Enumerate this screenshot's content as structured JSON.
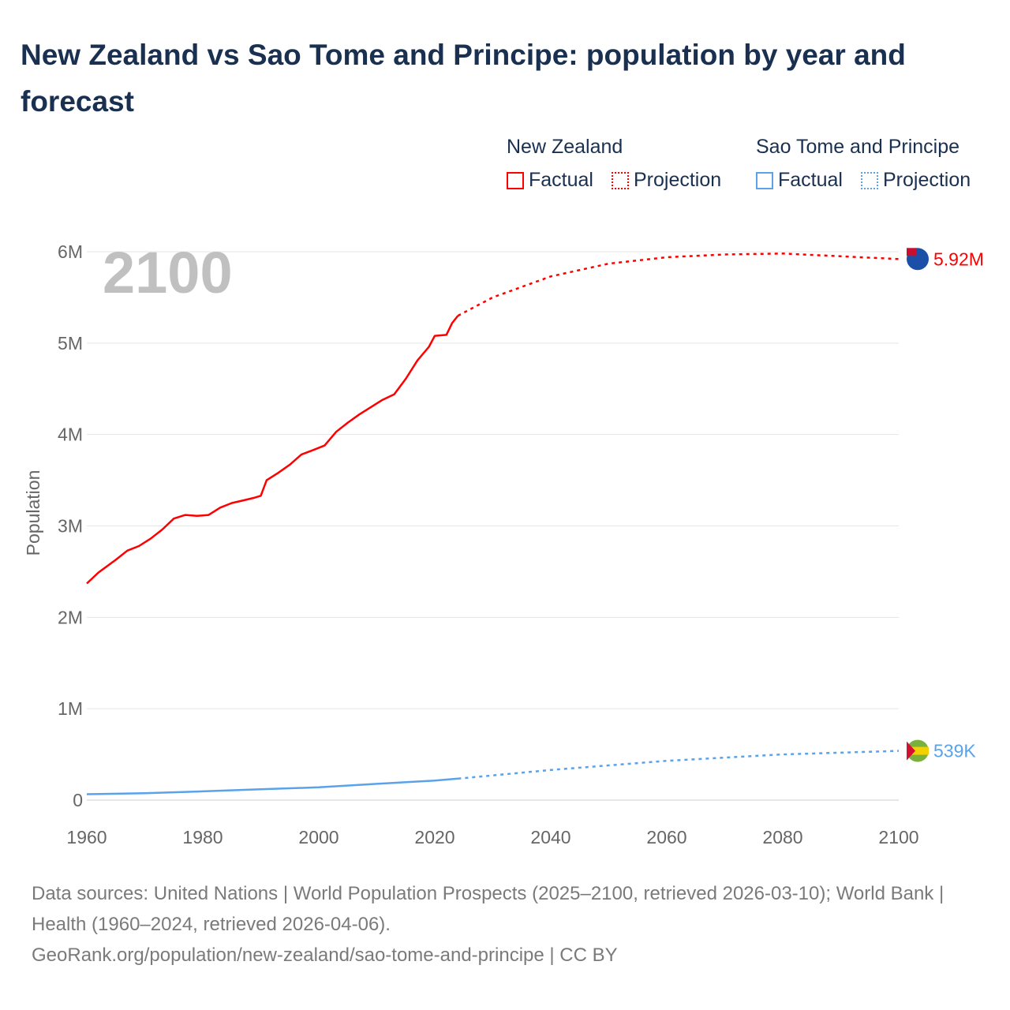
{
  "title": "New Zealand vs Sao Tome and Principe: population by year and forecast",
  "legend": {
    "groups": [
      {
        "name": "New Zealand",
        "factual_label": "Factual",
        "projection_label": "Projection",
        "color": "#ff0000"
      },
      {
        "name": "Sao Tome and Principe",
        "factual_label": "Factual",
        "projection_label": "Projection",
        "color": "#5aa2ea"
      }
    ]
  },
  "footer": {
    "sources": "Data sources: United Nations | World Population Prospects (2025–2100, retrieved 2026-03-10); World Bank | Health (1960–2024, retrieved 2026-04-06).",
    "credit": "GeoRank.org/population/new-zealand/sao-tome-and-principe | CC BY"
  },
  "chart_data": {
    "type": "line",
    "ylabel": "Population",
    "xlabel": "",
    "year_overlay": "2100",
    "xlim": [
      1960,
      2100
    ],
    "ylim": [
      0,
      6000000
    ],
    "x_ticks": [
      "1960",
      "1980",
      "2000",
      "2020",
      "2040",
      "2060",
      "2080",
      "2100"
    ],
    "y_ticks": [
      {
        "v": 0,
        "label": "0"
      },
      {
        "v": 1000000,
        "label": "1M"
      },
      {
        "v": 2000000,
        "label": "2M"
      },
      {
        "v": 3000000,
        "label": "3M"
      },
      {
        "v": 4000000,
        "label": "4M"
      },
      {
        "v": 5000000,
        "label": "5M"
      },
      {
        "v": 6000000,
        "label": "6M"
      }
    ],
    "grid": true,
    "series": [
      {
        "name": "New Zealand",
        "color": "#ff0000",
        "end_label": "5.92M",
        "factual": [
          [
            1960,
            2.37
          ],
          [
            1962,
            2.49
          ],
          [
            1965,
            2.63
          ],
          [
            1967,
            2.73
          ],
          [
            1969,
            2.78
          ],
          [
            1971,
            2.86
          ],
          [
            1973,
            2.96
          ],
          [
            1975,
            3.08
          ],
          [
            1977,
            3.12
          ],
          [
            1979,
            3.11
          ],
          [
            1981,
            3.12
          ],
          [
            1983,
            3.2
          ],
          [
            1985,
            3.25
          ],
          [
            1987,
            3.28
          ],
          [
            1989,
            3.31
          ],
          [
            1990,
            3.33
          ],
          [
            1991,
            3.5
          ],
          [
            1993,
            3.58
          ],
          [
            1995,
            3.67
          ],
          [
            1997,
            3.78
          ],
          [
            1999,
            3.83
          ],
          [
            2001,
            3.88
          ],
          [
            2003,
            4.03
          ],
          [
            2005,
            4.13
          ],
          [
            2007,
            4.22
          ],
          [
            2009,
            4.3
          ],
          [
            2011,
            4.38
          ],
          [
            2013,
            4.44
          ],
          [
            2015,
            4.61
          ],
          [
            2017,
            4.81
          ],
          [
            2019,
            4.96
          ],
          [
            2020,
            5.08
          ],
          [
            2022,
            5.09
          ],
          [
            2023,
            5.22
          ],
          [
            2024,
            5.3
          ]
        ],
        "projection": [
          [
            2024,
            5.3
          ],
          [
            2030,
            5.5
          ],
          [
            2040,
            5.73
          ],
          [
            2050,
            5.87
          ],
          [
            2060,
            5.94
          ],
          [
            2070,
            5.97
          ],
          [
            2080,
            5.98
          ],
          [
            2090,
            5.95
          ],
          [
            2100,
            5.92
          ]
        ]
      },
      {
        "name": "Sao Tome and Principe",
        "color": "#5aa2ea",
        "end_label": "539K",
        "factual": [
          [
            1960,
            0.065
          ],
          [
            1970,
            0.075
          ],
          [
            1980,
            0.096
          ],
          [
            1990,
            0.118
          ],
          [
            2000,
            0.14
          ],
          [
            2010,
            0.178
          ],
          [
            2020,
            0.214
          ],
          [
            2024,
            0.235
          ]
        ],
        "projection": [
          [
            2024,
            0.235
          ],
          [
            2040,
            0.33
          ],
          [
            2060,
            0.43
          ],
          [
            2080,
            0.5
          ],
          [
            2100,
            0.539
          ]
        ]
      }
    ]
  }
}
